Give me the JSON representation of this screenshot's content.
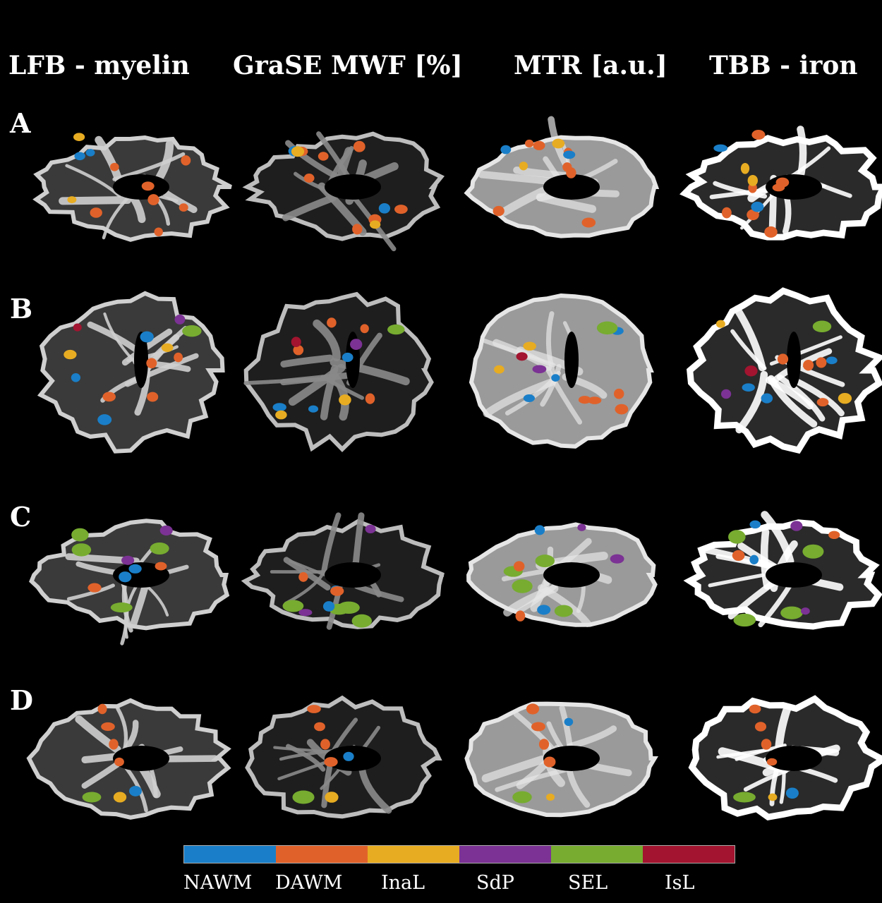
{
  "columns": [
    {
      "title": "LFB - myelin"
    },
    {
      "title": "GraSE MWF [%]"
    },
    {
      "title": "MTR [a.u.]"
    },
    {
      "title": "TBB - iron"
    }
  ],
  "rows": [
    {
      "label": "A"
    },
    {
      "label": "B"
    },
    {
      "label": "C"
    },
    {
      "label": "D"
    }
  ],
  "legend": [
    {
      "label": "NAWM",
      "color": "#1a7fc8"
    },
    {
      "label": "DAWM",
      "color": "#e0622a"
    },
    {
      "label": "InaL",
      "color": "#e7ac22"
    },
    {
      "label": "SdP",
      "color": "#7b3294"
    },
    {
      "label": "SEL",
      "color": "#77ac30"
    },
    {
      "label": "IsL",
      "color": "#a2142f"
    }
  ]
}
